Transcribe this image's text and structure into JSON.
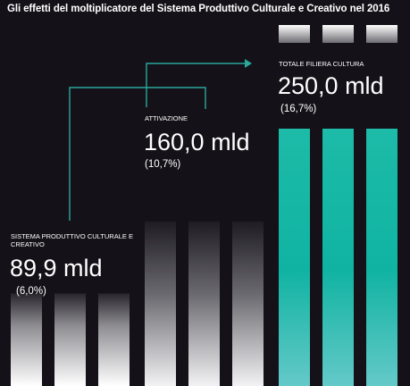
{
  "chart_data": {
    "type": "bar",
    "title": "Gli effetti del moltiplicatore del Sistema Produttivo Culturale e Creativo nel 2016",
    "series": [
      {
        "name": "SISTEMA PRODUTTIVO CULTURALE E CREATIVO",
        "value_label": "89,9 mld",
        "value": 89.9,
        "share_label": "(6,0%)",
        "share": 6.0
      },
      {
        "name": "ATTIVAZIONE",
        "value_label": "160,0 mld",
        "value": 160.0,
        "share_label": "(10,7%)",
        "share": 10.7
      },
      {
        "name": "TOTALE FILIERA CULTURA",
        "value_label": "250,0 mld",
        "value": 250.0,
        "share_label": "(16,7%)",
        "share": 16.7
      }
    ],
    "unit": "mld",
    "bars_per_group": 3,
    "colors": {
      "background": "#141118",
      "arrow": "#2aa89a",
      "teal_top": "#12b8a4",
      "teal_bottom": "#5cc7c6",
      "grey_top": "#1e1c22",
      "grey_bottom": "#ffffff"
    }
  }
}
